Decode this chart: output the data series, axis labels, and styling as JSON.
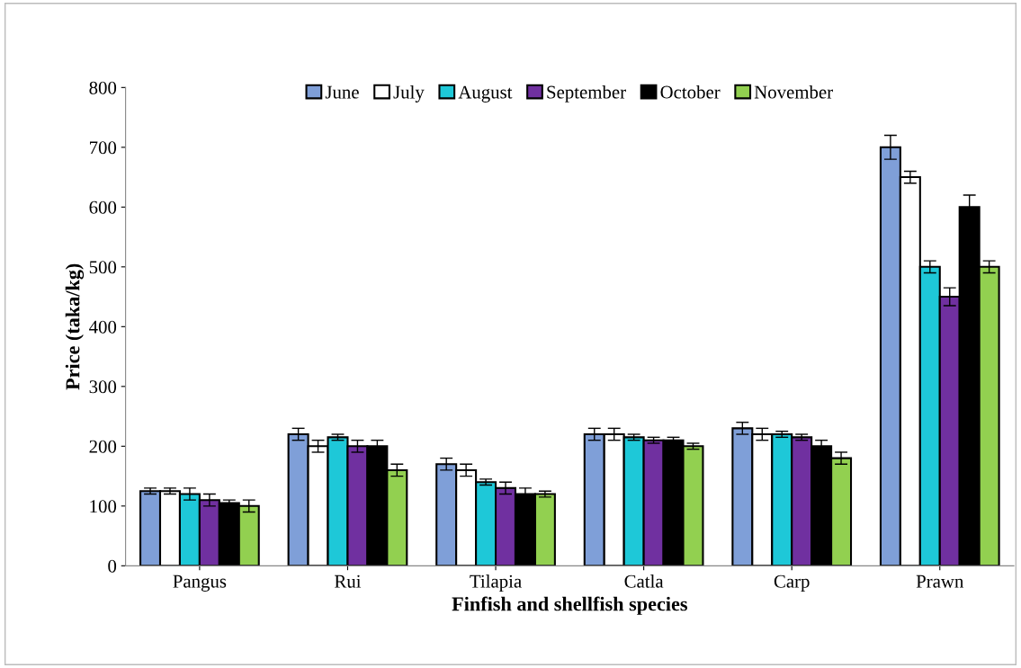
{
  "chart_data": {
    "type": "bar",
    "xlabel": "Finfish and shellfish species",
    "ylabel": "Price (taka/kg)",
    "categories": [
      "Pangus",
      "Rui",
      "Tilapia",
      "Catla",
      "Carp",
      "Prawn"
    ],
    "series": [
      {
        "name": "June",
        "color": "#7f9fd8",
        "values": [
          125,
          220,
          170,
          220,
          230,
          700
        ],
        "errors": [
          5,
          10,
          10,
          10,
          10,
          20
        ]
      },
      {
        "name": "July",
        "color": "#ffffff",
        "values": [
          125,
          200,
          160,
          220,
          220,
          650
        ],
        "errors": [
          5,
          10,
          10,
          10,
          10,
          10
        ]
      },
      {
        "name": "August",
        "color": "#1ec8d8",
        "values": [
          120,
          215,
          140,
          215,
          220,
          500
        ],
        "errors": [
          10,
          5,
          5,
          5,
          5,
          10
        ]
      },
      {
        "name": "September",
        "color": "#7030a0",
        "values": [
          110,
          200,
          130,
          210,
          215,
          450
        ],
        "errors": [
          10,
          10,
          10,
          5,
          5,
          15
        ]
      },
      {
        "name": "October",
        "color": "#000000",
        "values": [
          105,
          200,
          120,
          210,
          200,
          600
        ],
        "errors": [
          5,
          10,
          10,
          5,
          10,
          20
        ]
      },
      {
        "name": "November",
        "color": "#92d050",
        "values": [
          100,
          160,
          120,
          200,
          180,
          500
        ],
        "errors": [
          10,
          10,
          5,
          5,
          10,
          10
        ]
      }
    ],
    "ylim": [
      0,
      800
    ],
    "yticks": [
      0,
      100,
      200,
      300,
      400,
      500,
      600,
      700,
      800
    ],
    "grid": false,
    "legend": "top"
  }
}
